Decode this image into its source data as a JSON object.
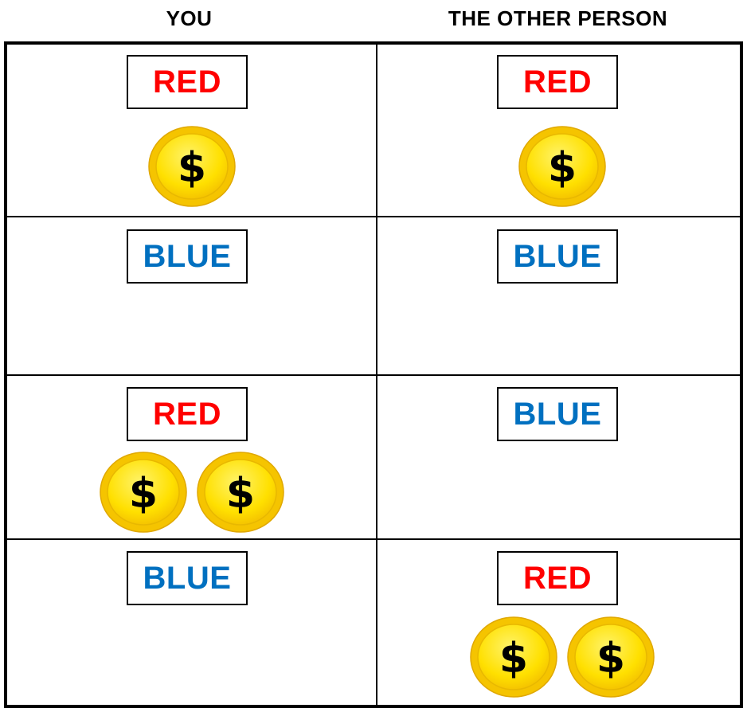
{
  "headers": {
    "you": "YOU",
    "other": "THE OTHER PERSON"
  },
  "colors": {
    "red": "#ff0000",
    "blue": "#0070c0",
    "coin_outer": "#f5c400",
    "coin_inner": "#ffe000",
    "coin_symbol": "#000000"
  },
  "coin_symbol": "$",
  "rows": [
    {
      "you": {
        "choice": "RED",
        "coins": 1
      },
      "other": {
        "choice": "RED",
        "coins": 1
      }
    },
    {
      "you": {
        "choice": "BLUE",
        "coins": 0
      },
      "other": {
        "choice": "BLUE",
        "coins": 0
      }
    },
    {
      "you": {
        "choice": "RED",
        "coins": 2
      },
      "other": {
        "choice": "BLUE",
        "coins": 0
      }
    },
    {
      "you": {
        "choice": "BLUE",
        "coins": 0
      },
      "other": {
        "choice": "RED",
        "coins": 2
      }
    }
  ]
}
